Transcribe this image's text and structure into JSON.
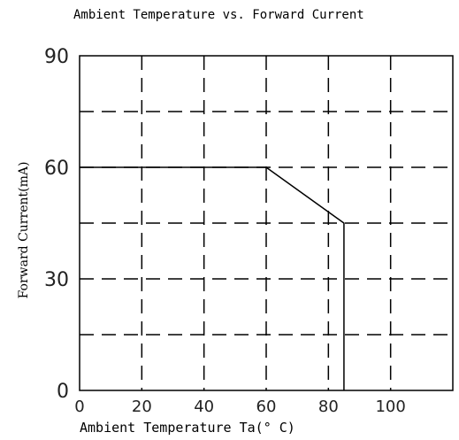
{
  "chart_data": {
    "type": "line",
    "title": "Ambient Temperature vs. Forward Current",
    "xlabel": "Ambient Temperature Ta(° C)",
    "ylabel": "Forward Current(mA)",
    "xlim": [
      0,
      120
    ],
    "ylim": [
      0,
      90
    ],
    "x_ticks": [
      "0",
      "20",
      "40",
      "60",
      "80",
      "100"
    ],
    "y_ticks": [
      "0",
      "30",
      "60",
      "90"
    ],
    "grid": true,
    "grid_style": "dashed",
    "series": [
      {
        "x": [
          0,
          60,
          85,
          85
        ],
        "y": [
          60,
          60,
          45,
          0
        ]
      }
    ]
  }
}
